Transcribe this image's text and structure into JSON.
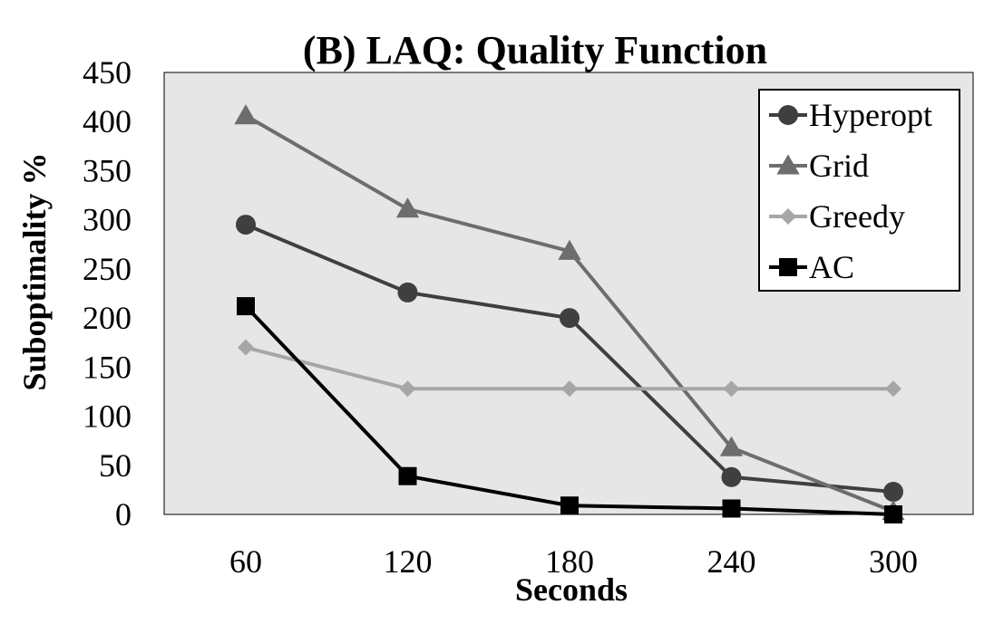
{
  "chart_data": {
    "type": "line",
    "title": "(B) LAQ: Quality Function",
    "xlabel": "Seconds",
    "ylabel": "Suboptimality %",
    "categories": [
      "60",
      "120",
      "180",
      "240",
      "300"
    ],
    "ylim": [
      0,
      450
    ],
    "yticks": [
      "0",
      "50",
      "100",
      "150",
      "200",
      "250",
      "300",
      "350",
      "400",
      "450"
    ],
    "grid": false,
    "legend_position": "top-right",
    "plot_background": "#e6e6e6",
    "series": [
      {
        "name": "Hyperopt",
        "marker": "circle",
        "color": "#3f3f3f",
        "values": [
          295,
          226,
          200,
          38,
          23
        ]
      },
      {
        "name": "Grid",
        "marker": "triangle",
        "color": "#6d6d6d",
        "values": [
          406,
          311,
          268,
          68,
          3
        ]
      },
      {
        "name": "Greedy",
        "marker": "diamond",
        "color": "#a6a6a6",
        "values": [
          170,
          128,
          128,
          128,
          128
        ]
      },
      {
        "name": "AC",
        "marker": "square",
        "color": "#000000",
        "values": [
          212,
          39,
          9,
          6,
          0
        ]
      }
    ]
  }
}
